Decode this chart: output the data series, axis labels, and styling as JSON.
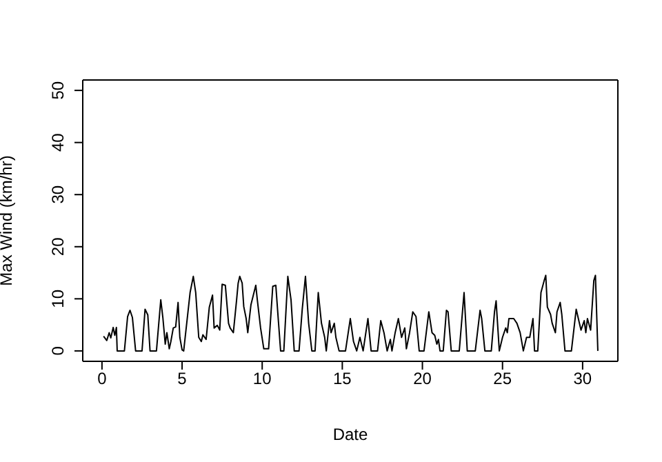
{
  "chart_data": {
    "type": "line",
    "xlabel": "Date",
    "ylabel": "Max Wind (km/hr)",
    "xlim": [
      -1.2,
      32.2
    ],
    "ylim": [
      -2,
      52
    ],
    "xticks": [
      0,
      5,
      10,
      15,
      20,
      25,
      30
    ],
    "yticks": [
      0,
      10,
      20,
      30,
      40,
      50
    ],
    "marker": "none",
    "line_style": "solid",
    "series": [
      {
        "color": "#000000",
        "x": [
          0.1,
          0.3,
          0.45,
          0.55,
          0.7,
          0.8,
          0.9,
          0.95,
          1.4,
          1.6,
          1.75,
          1.9,
          2.1,
          2.5,
          2.69,
          2.86,
          3.0,
          3.4,
          3.67,
          3.8,
          3.95,
          4.05,
          4.2,
          4.3,
          4.45,
          4.6,
          4.75,
          4.86,
          5.0,
          5.1,
          5.5,
          5.7,
          5.85,
          6.04,
          6.2,
          6.3,
          6.5,
          6.7,
          6.9,
          7.0,
          7.2,
          7.35,
          7.5,
          7.7,
          7.9,
          8.0,
          8.2,
          8.4,
          8.5,
          8.6,
          8.75,
          8.85,
          9.0,
          9.1,
          9.3,
          9.6,
          9.7,
          9.9,
          10.1,
          10.4,
          10.66,
          10.85,
          11.0,
          11.15,
          11.35,
          11.6,
          11.8,
          12.0,
          12.3,
          12.5,
          12.7,
          12.9,
          13.1,
          13.3,
          13.5,
          13.7,
          13.9,
          14.0,
          14.2,
          14.3,
          14.5,
          14.6,
          14.8,
          15.2,
          15.5,
          15.7,
          15.9,
          16.1,
          16.3,
          16.6,
          16.8,
          17.2,
          17.4,
          17.6,
          17.8,
          18.0,
          18.1,
          18.3,
          18.5,
          18.7,
          18.9,
          19.0,
          19.2,
          19.4,
          19.6,
          19.8,
          20.1,
          20.4,
          20.6,
          20.77,
          20.9,
          21.0,
          21.1,
          21.3,
          21.5,
          21.6,
          21.8,
          22.3,
          22.6,
          22.8,
          23.3,
          23.6,
          23.7,
          23.9,
          24.3,
          24.5,
          24.6,
          24.8,
          25.0,
          25.2,
          25.3,
          25.4,
          25.7,
          25.9,
          26.1,
          26.3,
          26.5,
          26.7,
          26.9,
          27.0,
          27.2,
          27.4,
          27.6,
          27.7,
          27.8,
          28.0,
          28.1,
          28.3,
          28.4,
          28.6,
          28.7,
          28.9,
          29.3,
          29.6,
          29.8,
          29.9,
          30.1,
          30.2,
          30.3,
          30.5,
          30.7,
          30.8,
          30.95
        ],
        "values": [
          2.8,
          2,
          3.5,
          2.5,
          4.5,
          3,
          4.5,
          0,
          0,
          6.6,
          7.8,
          6.4,
          0,
          0,
          8,
          6.9,
          0,
          0,
          9.8,
          6.4,
          1.3,
          3.5,
          0.4,
          1.8,
          4.4,
          4.6,
          9.3,
          2.6,
          0.2,
          0,
          11.2,
          14.3,
          11.2,
          2.6,
          1.8,
          3.1,
          2.2,
          8.4,
          10.7,
          4.4,
          4.9,
          4,
          12.8,
          12.6,
          5.3,
          4.4,
          3.5,
          9.7,
          13,
          14.3,
          13,
          8.5,
          6.2,
          3.5,
          8.9,
          12.6,
          9.7,
          4.4,
          0.4,
          0.4,
          12.4,
          12.6,
          6.2,
          0,
          0,
          14.3,
          9.8,
          0,
          0,
          8,
          14.3,
          5.3,
          0,
          0,
          11.2,
          5.3,
          2.6,
          0,
          5.8,
          3.5,
          5.3,
          2.6,
          0,
          0,
          6.2,
          1.8,
          0,
          2.6,
          0,
          6.2,
          0,
          0,
          5.8,
          3.5,
          0,
          2.2,
          0,
          3.5,
          6.2,
          2.6,
          4.4,
          0.4,
          3.5,
          7.5,
          6.6,
          0,
          0,
          7.5,
          3.5,
          3,
          1.3,
          2.2,
          0,
          0,
          7.8,
          7.5,
          0,
          0,
          11.2,
          0,
          0,
          7.8,
          6.2,
          0,
          0,
          7.5,
          9.6,
          0,
          2.6,
          4.4,
          3.5,
          6.2,
          6.2,
          5.3,
          3.5,
          0,
          2.6,
          2.6,
          6.2,
          0,
          0,
          11.2,
          13.5,
          14.5,
          8.4,
          7,
          5.3,
          3.5,
          7.5,
          9.3,
          7,
          0,
          0,
          8,
          5.3,
          4,
          5.8,
          3.5,
          6.2,
          4,
          13.5,
          14.5,
          0
        ]
      }
    ]
  }
}
